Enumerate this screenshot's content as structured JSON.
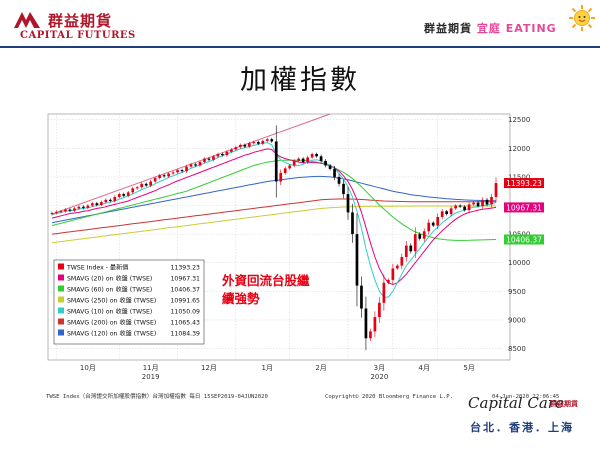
{
  "header": {
    "company_cn": "群益期貨",
    "company_en": "CAPITAL FUTURES",
    "slogan_a": "群益期貨",
    "slogan_b": "宜庭",
    "slogan_c": "EATING"
  },
  "title": "加權指數",
  "annotation": [
    "外資回流台股繼",
    "續強勢"
  ],
  "footer": {
    "source": "TWSE Index（台灣證交所加權股價指數）台灣加權指數  每日 15SEP2019-04JUN2020",
    "copyright": "Copyright© 2020 Bloomberg Finance L.P.",
    "timestamp": "04-Jun-2020 22:06:45",
    "brand": "Capital Care",
    "brand_sub": "群益期貨",
    "cities": "台北．香港．上海"
  },
  "colors": {
    "up": "#e60012",
    "down": "#000000",
    "sma20": "#e6007e",
    "sma60": "#33cc33",
    "sma250": "#cccc33",
    "sma10": "#33cccc",
    "sma200": "#cc3333",
    "sma120": "#3366cc",
    "trend": "#e06688",
    "label_close": "#e60012",
    "label_sma20": "#e6007e",
    "label_sma60": "#33cc33"
  },
  "chart_data": {
    "type": "candlestick",
    "ylim": [
      8300,
      12600
    ],
    "yticks": [
      8500,
      9000,
      9500,
      10000,
      10500,
      11000,
      11500,
      12000,
      12500
    ],
    "x_month_labels": [
      "10月",
      "11月",
      "12月",
      "1月",
      "2月",
      "3月",
      "4月",
      "5月"
    ],
    "x_year_labels": [
      {
        "label": "2019",
        "under_month": "11月"
      },
      {
        "label": "2020",
        "under_month": "3月"
      }
    ],
    "legend": [
      {
        "label": "TWSE Index - 最新價",
        "value": "11393.23",
        "color_key": "up"
      },
      {
        "label": "SMAVG (20)  on 收盤 (TWSE)",
        "value": "10967.31",
        "color_key": "sma20"
      },
      {
        "label": "SMAVG (60)  on 收盤 (TWSE)",
        "value": "10406.37",
        "color_key": "sma60"
      },
      {
        "label": "SMAVG (250) on 收盤 (TWSE)",
        "value": "10991.65",
        "color_key": "sma250"
      },
      {
        "label": "SMAVG (10)  on 收盤 (TWSE)",
        "value": "11050.09",
        "color_key": "sma10"
      },
      {
        "label": "SMAVG (200) on 收盤 (TWSE)",
        "value": "11065.43",
        "color_key": "sma200"
      },
      {
        "label": "SMAVG (120) on 收盤 (TWSE)",
        "value": "11084.39",
        "color_key": "sma120"
      }
    ],
    "value_labels": [
      {
        "value": "11393.23",
        "y": 11393.23,
        "color_key": "label_close"
      },
      {
        "value": "10967.31",
        "y": 10967.31,
        "color_key": "label_sma20"
      },
      {
        "value": "10406.37",
        "y": 10406.37,
        "color_key": "label_sma60"
      }
    ],
    "closes": [
      10870,
      10890,
      10900,
      10930,
      10910,
      10950,
      10980,
      10960,
      11000,
      11040,
      11010,
      11060,
      11100,
      11080,
      11150,
      11200,
      11170,
      11230,
      11300,
      11320,
      11380,
      11350,
      11420,
      11480,
      11530,
      11510,
      11560,
      11580,
      11620,
      11600,
      11680,
      11720,
      11700,
      11760,
      11820,
      11800,
      11860,
      11900,
      11880,
      11940,
      11980,
      12020,
      12060,
      12030,
      12090,
      12110,
      12080,
      12130,
      12160,
      12120,
      11420,
      11570,
      11650,
      11700,
      11780,
      11820,
      11760,
      11840,
      11900,
      11860,
      11780,
      11700,
      11640,
      11500,
      11380,
      11200,
      10880,
      10500,
      9600,
      9200,
      8680,
      8800,
      9050,
      9300,
      9650,
      9700,
      9900,
      9950,
      10100,
      10300,
      10200,
      10500,
      10420,
      10550,
      10700,
      10650,
      10800,
      10900,
      10850,
      10950,
      11000,
      10980,
      10920,
      11020,
      11050,
      10990,
      11100,
      11020,
      11150,
      11393
    ],
    "sma10": [
      10840,
      10860,
      10880,
      10900,
      10910,
      10920,
      10940,
      10950,
      10960,
      10980,
      11000,
      11020,
      11040,
      11060,
      11080,
      11110,
      11140,
      11170,
      11200,
      11240,
      11280,
      11310,
      11340,
      11380,
      11420,
      11450,
      11490,
      11520,
      11550,
      11580,
      11610,
      11650,
      11680,
      11710,
      11740,
      11770,
      11800,
      11840,
      11870,
      11900,
      11930,
      11960,
      11990,
      12010,
      12030,
      12050,
      12070,
      12090,
      12100,
      12060,
      11900,
      11800,
      11750,
      11720,
      11700,
      11700,
      11720,
      11760,
      11790,
      11800,
      11780,
      11740,
      11700,
      11640,
      11560,
      11460,
      11330,
      11150,
      10900,
      10600,
      10250,
      9950,
      9700,
      9500,
      9400,
      9400,
      9500,
      9650,
      9800,
      9950,
      10050,
      10150,
      10250,
      10350,
      10450,
      10550,
      10620,
      10700,
      10760,
      10820,
      10870,
      10900,
      10920,
      10950,
      10970,
      10980,
      11000,
      11010,
      11030,
      11050
    ],
    "sma20": [
      10780,
      10800,
      10820,
      10840,
      10860,
      10870,
      10880,
      10900,
      10910,
      10930,
      10950,
      10960,
      10980,
      11000,
      11020,
      11040,
      11060,
      11080,
      11110,
      11140,
      11170,
      11200,
      11230,
      11260,
      11300,
      11330,
      11360,
      11400,
      11430,
      11460,
      11490,
      11520,
      11550,
      11580,
      11610,
      11640,
      11670,
      11700,
      11730,
      11760,
      11790,
      11820,
      11850,
      11880,
      11900,
      11930,
      11950,
      11970,
      11990,
      11980,
      11900,
      11850,
      11820,
      11800,
      11780,
      11760,
      11750,
      11750,
      11750,
      11750,
      11740,
      11720,
      11700,
      11660,
      11600,
      11520,
      11420,
      11280,
      11100,
      10880,
      10620,
      10350,
      10100,
      9900,
      9750,
      9650,
      9620,
      9650,
      9720,
      9800,
      9900,
      10000,
      10100,
      10200,
      10300,
      10400,
      10480,
      10560,
      10630,
      10700,
      10760,
      10810,
      10850,
      10880,
      10900,
      10920,
      10935,
      10945,
      10955,
      10967
    ],
    "sma60": [
      10650,
      10670,
      10690,
      10710,
      10730,
      10750,
      10770,
      10790,
      10810,
      10830,
      10850,
      10870,
      10890,
      10910,
      10930,
      10950,
      10970,
      10990,
      11010,
      11030,
      11050,
      11070,
      11090,
      11110,
      11130,
      11150,
      11170,
      11190,
      11210,
      11230,
      11250,
      11280,
      11310,
      11340,
      11370,
      11400,
      11430,
      11460,
      11490,
      11520,
      11550,
      11580,
      11610,
      11640,
      11670,
      11700,
      11720,
      11740,
      11760,
      11770,
      11780,
      11790,
      11790,
      11790,
      11790,
      11790,
      11790,
      11780,
      11770,
      11760,
      11740,
      11720,
      11690,
      11660,
      11620,
      11580,
      11530,
      11470,
      11400,
      11330,
      11250,
      11170,
      11090,
      11010,
      10940,
      10870,
      10800,
      10740,
      10680,
      10630,
      10580,
      10540,
      10510,
      10480,
      10460,
      10440,
      10420,
      10410,
      10400,
      10395,
      10390,
      10390,
      10390,
      10392,
      10395,
      10398,
      10400,
      10402,
      10404,
      10406
    ],
    "sma250": [
      10350,
      10360,
      10370,
      10380,
      10390,
      10400,
      10410,
      10420,
      10430,
      10440,
      10450,
      10460,
      10470,
      10480,
      10490,
      10500,
      10510,
      10520,
      10530,
      10540,
      10550,
      10560,
      10570,
      10580,
      10590,
      10600,
      10610,
      10620,
      10630,
      10640,
      10650,
      10660,
      10670,
      10680,
      10690,
      10700,
      10710,
      10720,
      10730,
      10740,
      10750,
      10760,
      10770,
      10780,
      10790,
      10800,
      10810,
      10820,
      10830,
      10840,
      10850,
      10860,
      10870,
      10880,
      10890,
      10900,
      10910,
      10920,
      10930,
      10940,
      10950,
      10955,
      10960,
      10965,
      10970,
      10975,
      10978,
      10980,
      10982,
      10984,
      10985,
      10986,
      10987,
      10988,
      10988,
      10989,
      10989,
      10990,
      10990,
      10990,
      10990,
      10991,
      10991,
      10991,
      10991,
      10991,
      10991,
      10991,
      10991,
      10991,
      10991,
      10991,
      10991,
      10991,
      10991,
      10991,
      10991,
      10991,
      10992,
      10992
    ],
    "sma200": [
      10500,
      10510,
      10520,
      10530,
      10540,
      10550,
      10560,
      10570,
      10580,
      10590,
      10600,
      10610,
      10620,
      10630,
      10640,
      10650,
      10660,
      10670,
      10680,
      10690,
      10700,
      10710,
      10720,
      10730,
      10740,
      10750,
      10760,
      10770,
      10780,
      10790,
      10800,
      10810,
      10820,
      10830,
      10840,
      10850,
      10860,
      10870,
      10880,
      10890,
      10900,
      10910,
      10920,
      10930,
      10940,
      10950,
      10960,
      10970,
      10980,
      10990,
      11000,
      11010,
      11020,
      11030,
      11040,
      11050,
      11060,
      11070,
      11080,
      11090,
      11100,
      11105,
      11110,
      11112,
      11115,
      11115,
      11115,
      11112,
      11110,
      11105,
      11100,
      11095,
      11090,
      11085,
      11080,
      11078,
      11075,
      11072,
      11070,
      11068,
      11067,
      11066,
      11066,
      11065,
      11065,
      11065,
      11065,
      11065,
      11065,
      11065,
      11065,
      11065,
      11065,
      11065,
      11065,
      11065,
      11065,
      11065,
      11065,
      11065
    ],
    "sma120": [
      10700,
      10715,
      10730,
      10745,
      10760,
      10775,
      10790,
      10805,
      10820,
      10835,
      10850,
      10865,
      10880,
      10895,
      10910,
      10925,
      10940,
      10955,
      10970,
      10985,
      11000,
      11015,
      11030,
      11045,
      11060,
      11075,
      11090,
      11105,
      11120,
      11135,
      11150,
      11165,
      11180,
      11195,
      11210,
      11225,
      11240,
      11255,
      11270,
      11285,
      11300,
      11315,
      11330,
      11345,
      11360,
      11375,
      11390,
      11405,
      11420,
      11430,
      11440,
      11450,
      11460,
      11470,
      11480,
      11490,
      11495,
      11500,
      11505,
      11510,
      11510,
      11505,
      11500,
      11490,
      11480,
      11465,
      11450,
      11430,
      11410,
      11390,
      11370,
      11350,
      11330,
      11310,
      11290,
      11270,
      11250,
      11235,
      11220,
      11205,
      11190,
      11180,
      11170,
      11160,
      11150,
      11142,
      11135,
      11128,
      11120,
      11114,
      11108,
      11103,
      11099,
      11095,
      11092,
      11090,
      11088,
      11086,
      11085,
      11084
    ],
    "trend": [
      {
        "i": 0,
        "y": 10850
      },
      {
        "i": 62,
        "y": 12600
      }
    ]
  }
}
